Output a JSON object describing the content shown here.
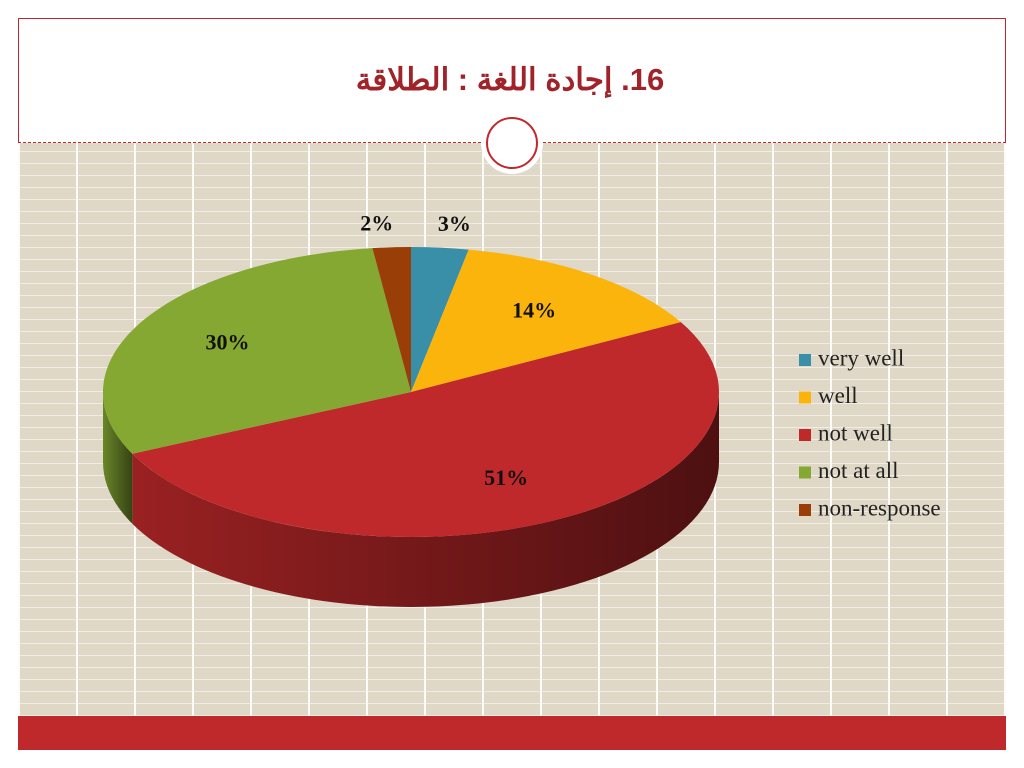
{
  "chart_data": {
    "type": "pie",
    "title": "16. إجادة اللغة : الطلاقة",
    "categories": [
      "very well",
      "well",
      "not well",
      "not at all",
      "non-response"
    ],
    "values": [
      3,
      14,
      51,
      30,
      2
    ],
    "value_labels": [
      "3%",
      "14%",
      "51%",
      "30%",
      "2%"
    ],
    "colors": [
      "#3a8fa8",
      "#fbb40c",
      "#c0292b",
      "#84a832",
      "#9a3e08"
    ],
    "legend": "right"
  }
}
